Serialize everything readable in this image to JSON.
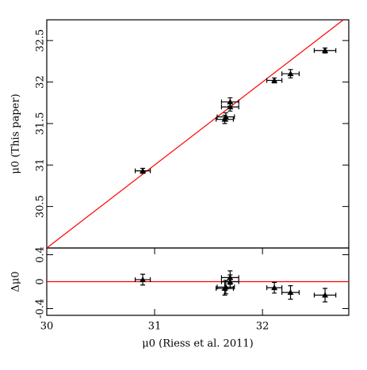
{
  "chart_data": [
    {
      "type": "scatter",
      "y_label": "μ0 (This paper)",
      "x": [
        30.89,
        31.65,
        31.7,
        31.7,
        31.66,
        32.11,
        32.26,
        32.58
      ],
      "x_err": [
        0.07,
        0.08,
        0.08,
        0.08,
        0.08,
        0.07,
        0.08,
        0.1
      ],
      "values": [
        30.93,
        31.55,
        31.76,
        31.7,
        31.58,
        32.02,
        32.1,
        32.38
      ],
      "y_err": [
        0.03,
        0.05,
        0.05,
        0.05,
        0.05,
        0.03,
        0.05,
        0.03
      ],
      "color": "#000000",
      "identity_line": true,
      "line_color": "#ff0000",
      "xlim": [
        30,
        32.8
      ],
      "ylim": [
        30,
        32.75
      ],
      "yticks": [
        30.5,
        31,
        31.5,
        32,
        32.5
      ]
    },
    {
      "type": "scatter",
      "y_label": "Δμ0",
      "x_label": "μ0 (Riess et al. 2011)",
      "x": [
        30.89,
        31.65,
        31.7,
        31.7,
        31.66,
        32.11,
        32.26,
        32.58
      ],
      "x_err": [
        0.07,
        0.08,
        0.08,
        0.08,
        0.08,
        0.07,
        0.08,
        0.1
      ],
      "values": [
        0.03,
        -0.1,
        0.06,
        0.0,
        -0.08,
        -0.09,
        -0.16,
        -0.2
      ],
      "y_err": [
        0.08,
        0.1,
        0.1,
        0.1,
        0.1,
        0.08,
        0.1,
        0.1
      ],
      "color": "#000000",
      "zero_line": true,
      "line_color": "#ff0000",
      "xlim": [
        30,
        32.8
      ],
      "ylim": [
        -0.5,
        0.5
      ],
      "xticks": [
        30,
        31,
        32
      ],
      "yticks": [
        0.4,
        0,
        -0.4
      ]
    }
  ]
}
